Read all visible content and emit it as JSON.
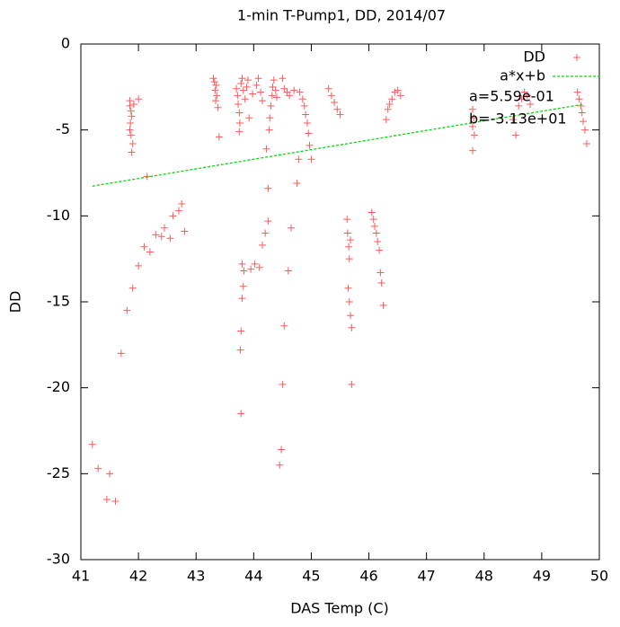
{
  "chart_data": {
    "type": "scatter",
    "title": "1-min T-Pump1, DD, 2014/07",
    "x_label": "DAS Temp (C)",
    "y_label": "DD",
    "xlim": [
      41,
      50
    ],
    "ylim": [
      -30,
      0
    ],
    "xticks": [
      41,
      42,
      43,
      44,
      45,
      46,
      47,
      48,
      49,
      50
    ],
    "yticks": [
      -30,
      -25,
      -20,
      -15,
      -10,
      -5,
      0
    ],
    "grid": false,
    "legend": "top-right",
    "annotations": [
      "a=5.59e-01",
      "b=-3.13e+01"
    ],
    "series": [
      {
        "name": "DD",
        "color": "#ff5a5a",
        "marker": "+",
        "x": [
          41.2,
          41.3,
          41.45,
          41.5,
          41.6,
          41.7,
          41.8,
          41.9,
          42.0,
          42.1,
          42.2,
          42.3,
          42.4,
          42.45,
          42.55,
          42.6,
          42.7,
          42.75,
          42.8,
          42.15,
          41.85,
          41.85,
          41.87,
          41.88,
          41.86,
          41.85,
          41.87,
          41.9,
          41.88,
          41.92,
          42.0,
          43.3,
          43.32,
          43.35,
          43.33,
          43.36,
          43.34,
          43.38,
          43.4,
          43.7,
          43.72,
          43.73,
          43.75,
          43.76,
          43.78,
          43.8,
          43.82,
          43.85,
          43.88,
          43.9,
          43.92,
          43.98,
          43.75,
          43.8,
          43.83,
          43.82,
          43.8,
          43.78,
          43.77,
          43.78,
          43.95,
          44.02,
          44.1,
          44.05,
          44.08,
          44.12,
          44.15,
          44.15,
          44.2,
          44.25,
          44.25,
          44.22,
          44.27,
          44.28,
          44.3,
          44.32,
          44.33,
          44.35,
          44.38,
          44.4,
          44.45,
          44.48,
          44.5,
          44.53,
          44.6,
          44.65,
          44.5,
          44.53,
          44.58,
          44.62,
          44.7,
          44.75,
          44.78,
          44.8,
          44.85,
          44.88,
          44.9,
          44.93,
          44.95,
          44.97,
          45.0,
          45.3,
          45.35,
          45.4,
          45.45,
          45.5,
          45.62,
          45.63,
          45.65,
          45.66,
          45.64,
          45.66,
          45.68,
          45.7,
          45.7,
          45.68,
          46.05,
          46.08,
          46.1,
          46.13,
          46.15,
          46.18,
          46.2,
          46.22,
          46.25,
          46.3,
          46.33,
          46.36,
          46.4,
          46.45,
          46.5,
          46.55,
          47.8,
          47.82,
          47.8,
          47.83,
          47.8,
          48.5,
          48.55,
          48.6,
          48.65,
          48.7,
          48.75,
          48.8,
          49.62,
          49.65,
          49.68,
          49.7,
          49.72,
          49.75,
          49.78
        ],
        "values": [
          -23.3,
          -24.7,
          -26.5,
          -25.0,
          -26.6,
          -18.0,
          -15.5,
          -14.2,
          -12.9,
          -11.8,
          -12.1,
          -11.1,
          -11.2,
          -10.7,
          -11.3,
          -10.0,
          -9.7,
          -9.3,
          -10.9,
          -7.7,
          -3.3,
          -3.6,
          -3.9,
          -4.2,
          -4.6,
          -5.0,
          -5.3,
          -5.8,
          -6.3,
          -3.5,
          -3.2,
          -2.0,
          -2.2,
          -2.4,
          -2.7,
          -3.0,
          -3.3,
          -3.7,
          -5.4,
          -2.6,
          -3.0,
          -3.5,
          -4.0,
          -4.6,
          -2.3,
          -2.0,
          -2.7,
          -3.2,
          -2.5,
          -2.1,
          -4.3,
          -2.9,
          -5.1,
          -12.8,
          -13.2,
          -14.1,
          -14.8,
          -16.7,
          -17.8,
          -21.5,
          -13.1,
          -12.8,
          -13.0,
          -2.4,
          -2.0,
          -2.8,
          -3.3,
          -11.7,
          -11.0,
          -10.3,
          -8.4,
          -6.1,
          -5.0,
          -4.3,
          -3.6,
          -3.0,
          -2.5,
          -2.1,
          -2.7,
          -3.1,
          -24.5,
          -23.6,
          -19.8,
          -16.4,
          -13.2,
          -10.7,
          -2.0,
          -2.6,
          -2.8,
          -3.0,
          -2.7,
          -8.1,
          -6.7,
          -2.8,
          -3.2,
          -3.6,
          -4.1,
          -4.6,
          -5.2,
          -5.9,
          -6.7,
          -2.6,
          -3.0,
          -3.4,
          -3.8,
          -4.1,
          -10.2,
          -11.0,
          -11.8,
          -12.5,
          -14.2,
          -15.0,
          -15.8,
          -16.5,
          -19.8,
          -11.4,
          -9.8,
          -10.2,
          -10.6,
          -11.0,
          -11.5,
          -12.0,
          -13.3,
          -13.9,
          -15.2,
          -4.4,
          -3.8,
          -3.5,
          -3.2,
          -2.8,
          -2.7,
          -3.0,
          -3.8,
          -4.3,
          -4.8,
          -5.3,
          -6.2,
          -4.4,
          -5.3,
          -3.6,
          -3.2,
          -2.8,
          -3.0,
          -3.5,
          -2.8,
          -3.2,
          -3.6,
          -4.0,
          -4.5,
          -5.0,
          -5.8
        ]
      },
      {
        "name": "a*x+b",
        "type": "line",
        "color": "#00dd00",
        "line_style": "dashed",
        "x": [
          41.2,
          49.7
        ],
        "values": [
          -8.27,
          -3.52
        ]
      }
    ]
  }
}
